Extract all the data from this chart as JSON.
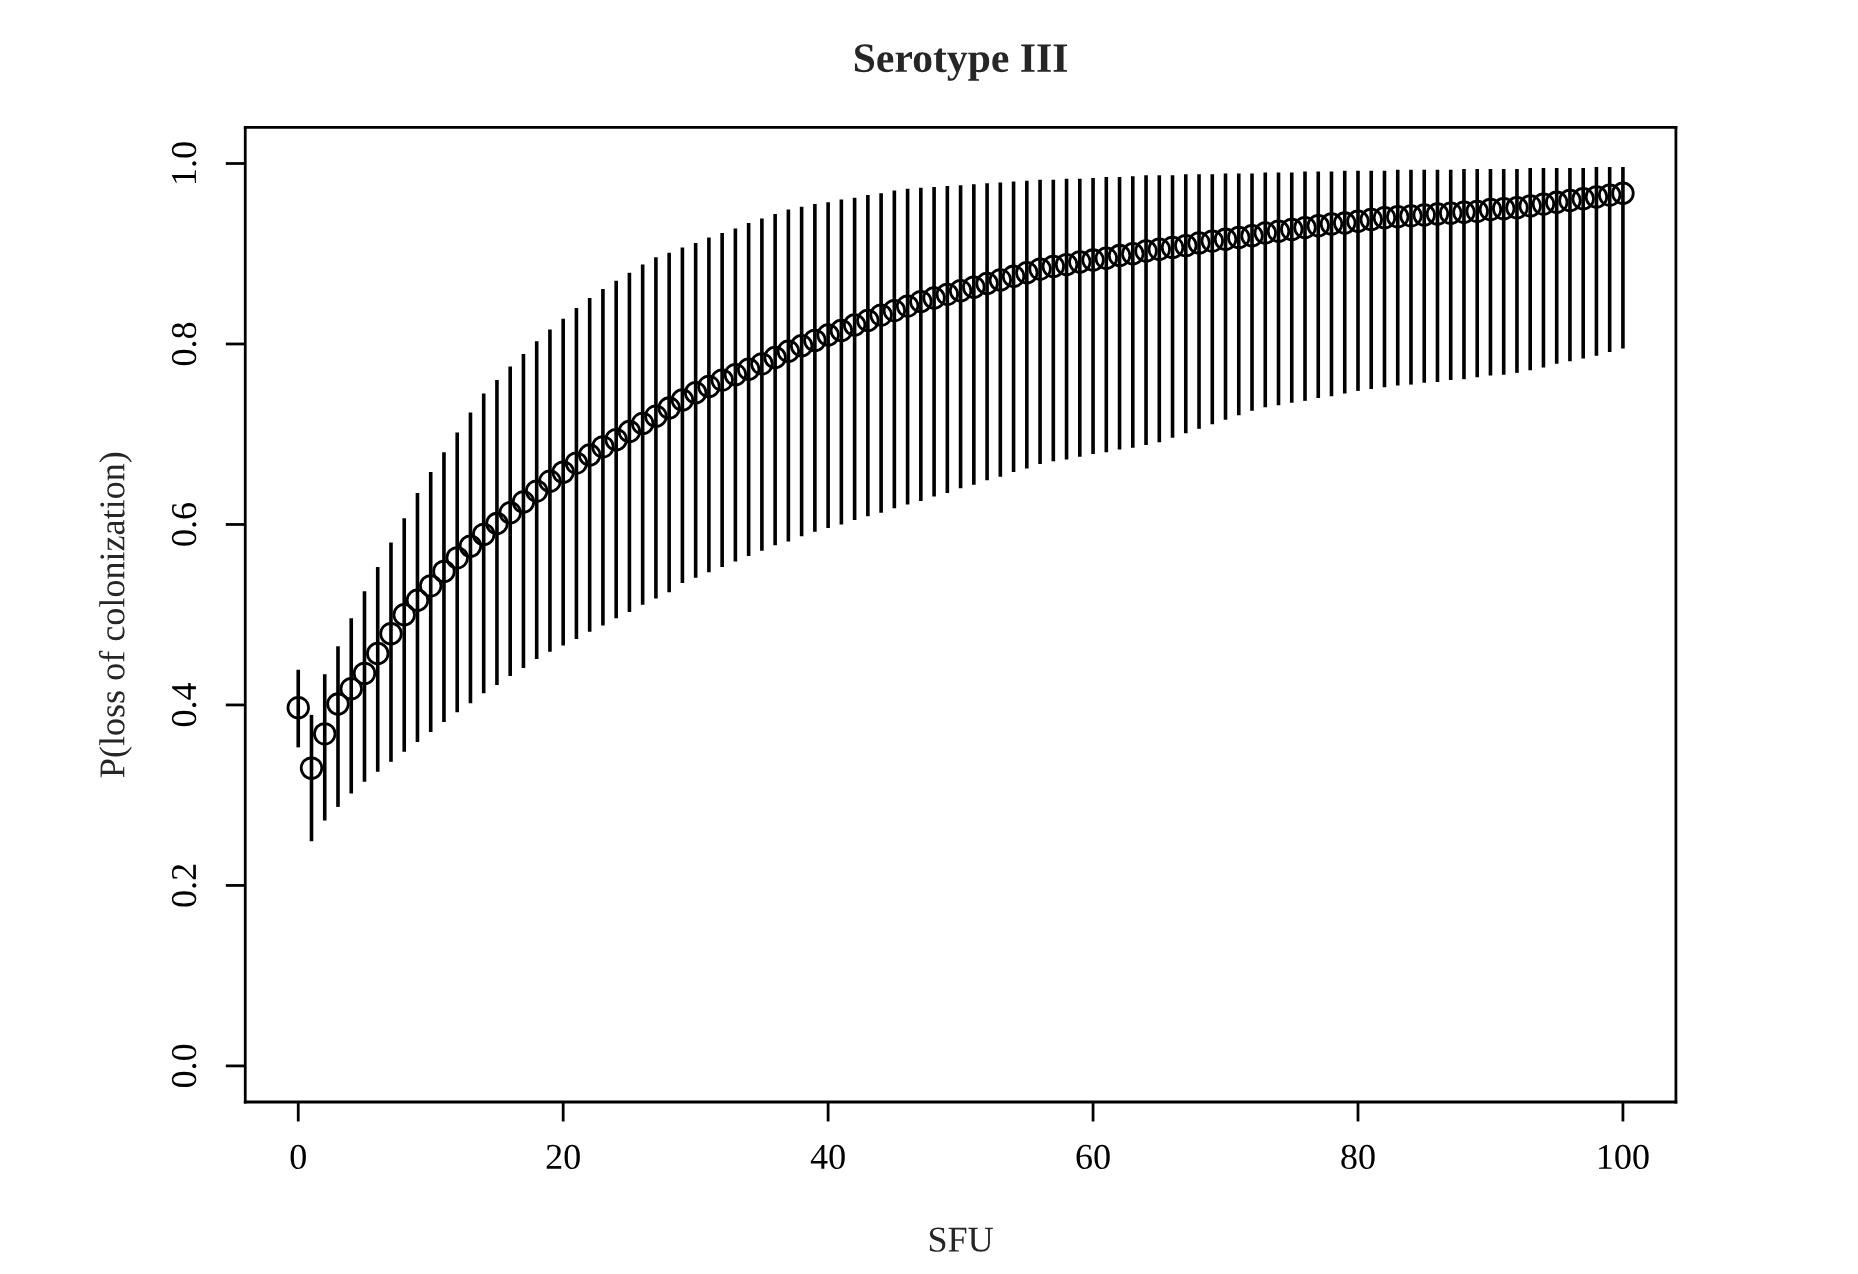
{
  "chart_data": {
    "type": "scatter",
    "title": "Serotype III",
    "xlabel": "SFU",
    "ylabel": "P(loss of colonization)",
    "xlim": [
      -4,
      104
    ],
    "ylim": [
      -0.04,
      1.04
    ],
    "xticks": [
      0,
      20,
      40,
      60,
      80,
      100
    ],
    "yticks": [
      {
        "value": 0,
        "label": "0.0"
      },
      {
        "value": 0.2,
        "label": "0.2"
      },
      {
        "value": 0.4,
        "label": "0.4"
      },
      {
        "value": 0.6,
        "label": "0.6"
      },
      {
        "value": 0.8,
        "label": "0.8"
      },
      {
        "value": 1,
        "label": "1.0"
      }
    ],
    "grid": false,
    "marker": "circle",
    "x": [
      0,
      1,
      2,
      3,
      4,
      5,
      6,
      7,
      8,
      9,
      10,
      11,
      12,
      13,
      14,
      15,
      16,
      17,
      18,
      19,
      20,
      21,
      22,
      23,
      24,
      25,
      26,
      27,
      28,
      29,
      30,
      31,
      32,
      33,
      34,
      35,
      36,
      37,
      38,
      39,
      40,
      41,
      42,
      43,
      44,
      45,
      46,
      47,
      48,
      49,
      50,
      51,
      52,
      53,
      54,
      55,
      56,
      57,
      58,
      59,
      60,
      61,
      62,
      63,
      64,
      65,
      66,
      67,
      68,
      69,
      70,
      71,
      72,
      73,
      74,
      75,
      76,
      77,
      78,
      79,
      80,
      81,
      82,
      83,
      84,
      85,
      86,
      87,
      88,
      89,
      90,
      91,
      92,
      93,
      94,
      95,
      96,
      97,
      98,
      99,
      100
    ],
    "series": [
      {
        "color": "#000000",
        "values": [
          0.397,
          0.33,
          0.368,
          0.401,
          0.418,
          0.435,
          0.457,
          0.479,
          0.5,
          0.516,
          0.532,
          0.548,
          0.563,
          0.576,
          0.589,
          0.601,
          0.613,
          0.625,
          0.637,
          0.648,
          0.658,
          0.668,
          0.677,
          0.686,
          0.694,
          0.703,
          0.712,
          0.72,
          0.729,
          0.738,
          0.746,
          0.753,
          0.76,
          0.766,
          0.772,
          0.778,
          0.785,
          0.792,
          0.798,
          0.804,
          0.81,
          0.815,
          0.821,
          0.826,
          0.832,
          0.837,
          0.842,
          0.847,
          0.851,
          0.855,
          0.859,
          0.863,
          0.867,
          0.871,
          0.875,
          0.879,
          0.883,
          0.886,
          0.888,
          0.891,
          0.893,
          0.895,
          0.898,
          0.9,
          0.903,
          0.905,
          0.907,
          0.909,
          0.912,
          0.914,
          0.916,
          0.918,
          0.92,
          0.923,
          0.925,
          0.927,
          0.929,
          0.931,
          0.933,
          0.934,
          0.936,
          0.938,
          0.94,
          0.941,
          0.942,
          0.943,
          0.944,
          0.945,
          0.946,
          0.947,
          0.949,
          0.95,
          0.951,
          0.953,
          0.955,
          0.957,
          0.959,
          0.961,
          0.963,
          0.965,
          0.967
        ],
        "errors": [
          [
            0.353,
            0.439
          ],
          [
            0.249,
            0.389
          ],
          [
            0.272,
            0.434
          ],
          [
            0.287,
            0.465
          ],
          [
            0.302,
            0.496
          ],
          [
            0.315,
            0.526
          ],
          [
            0.326,
            0.553
          ],
          [
            0.337,
            0.58
          ],
          [
            0.348,
            0.607
          ],
          [
            0.359,
            0.635
          ],
          [
            0.37,
            0.658
          ],
          [
            0.381,
            0.68
          ],
          [
            0.392,
            0.702
          ],
          [
            0.402,
            0.724
          ],
          [
            0.413,
            0.745
          ],
          [
            0.422,
            0.76
          ],
          [
            0.432,
            0.775
          ],
          [
            0.441,
            0.789
          ],
          [
            0.451,
            0.803
          ],
          [
            0.459,
            0.816
          ],
          [
            0.466,
            0.828
          ],
          [
            0.473,
            0.84
          ],
          [
            0.481,
            0.851
          ],
          [
            0.488,
            0.861
          ],
          [
            0.496,
            0.87
          ],
          [
            0.503,
            0.879
          ],
          [
            0.511,
            0.888
          ],
          [
            0.518,
            0.896
          ],
          [
            0.525,
            0.901
          ],
          [
            0.535,
            0.907
          ],
          [
            0.541,
            0.912
          ],
          [
            0.547,
            0.918
          ],
          [
            0.553,
            0.923
          ],
          [
            0.559,
            0.928
          ],
          [
            0.565,
            0.934
          ],
          [
            0.571,
            0.939
          ],
          [
            0.577,
            0.944
          ],
          [
            0.581,
            0.949
          ],
          [
            0.587,
            0.952
          ],
          [
            0.592,
            0.955
          ],
          [
            0.596,
            0.957
          ],
          [
            0.6,
            0.96
          ],
          [
            0.605,
            0.962
          ],
          [
            0.609,
            0.965
          ],
          [
            0.613,
            0.967
          ],
          [
            0.618,
            0.97
          ],
          [
            0.622,
            0.972
          ],
          [
            0.626,
            0.973
          ],
          [
            0.631,
            0.974
          ],
          [
            0.635,
            0.975
          ],
          [
            0.64,
            0.976
          ],
          [
            0.644,
            0.977
          ],
          [
            0.649,
            0.978
          ],
          [
            0.653,
            0.979
          ],
          [
            0.658,
            0.98
          ],
          [
            0.662,
            0.981
          ],
          [
            0.667,
            0.982
          ],
          [
            0.67,
            0.982
          ],
          [
            0.672,
            0.983
          ],
          [
            0.675,
            0.983
          ],
          [
            0.678,
            0.984
          ],
          [
            0.68,
            0.985
          ],
          [
            0.683,
            0.985
          ],
          [
            0.685,
            0.986
          ],
          [
            0.688,
            0.987
          ],
          [
            0.691,
            0.987
          ],
          [
            0.696,
            0.987
          ],
          [
            0.701,
            0.988
          ],
          [
            0.706,
            0.988
          ],
          [
            0.711,
            0.988
          ],
          [
            0.716,
            0.989
          ],
          [
            0.721,
            0.989
          ],
          [
            0.726,
            0.989
          ],
          [
            0.73,
            0.99
          ],
          [
            0.732,
            0.99
          ],
          [
            0.735,
            0.99
          ],
          [
            0.737,
            0.991
          ],
          [
            0.74,
            0.991
          ],
          [
            0.742,
            0.991
          ],
          [
            0.745,
            0.992
          ],
          [
            0.748,
            0.992
          ],
          [
            0.75,
            0.992
          ],
          [
            0.752,
            0.992
          ],
          [
            0.754,
            0.993
          ],
          [
            0.755,
            0.993
          ],
          [
            0.757,
            0.993
          ],
          [
            0.758,
            0.993
          ],
          [
            0.76,
            0.993
          ],
          [
            0.761,
            0.994
          ],
          [
            0.763,
            0.994
          ],
          [
            0.765,
            0.994
          ],
          [
            0.766,
            0.994
          ],
          [
            0.768,
            0.994
          ],
          [
            0.771,
            0.995
          ],
          [
            0.774,
            0.995
          ],
          [
            0.778,
            0.995
          ],
          [
            0.781,
            0.995
          ],
          [
            0.784,
            0.995
          ],
          [
            0.787,
            0.996
          ],
          [
            0.791,
            0.996
          ],
          [
            0.795,
            0.996
          ]
        ]
      }
    ]
  }
}
